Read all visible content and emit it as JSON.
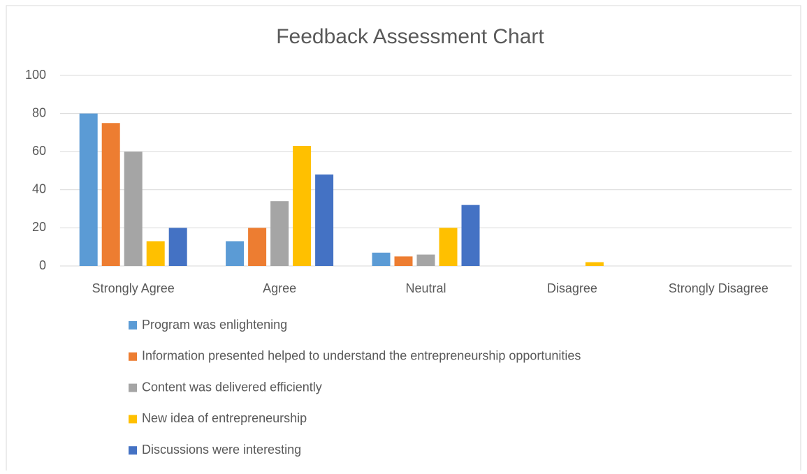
{
  "chart_data": {
    "type": "bar",
    "title": "Feedback Assessment Chart",
    "categories": [
      "Strongly Agree",
      "Agree",
      "Neutral",
      "Disagree",
      "Strongly Disagree"
    ],
    "series": [
      {
        "name": "Program was enlightening",
        "color": "#5b9bd5",
        "values": [
          80,
          13,
          7,
          0,
          0
        ]
      },
      {
        "name": "Information presented helped to understand the entrepreneurship opportunities",
        "color": "#ed7d31",
        "values": [
          75,
          20,
          5,
          0,
          0
        ]
      },
      {
        "name": "Content was delivered efficiently",
        "color": "#a5a5a5",
        "values": [
          60,
          34,
          6,
          0,
          0
        ]
      },
      {
        "name": "New idea of entrepreneurship",
        "color": "#ffc000",
        "values": [
          13,
          63,
          20,
          2,
          0
        ]
      },
      {
        "name": "Discussions were interesting",
        "color": "#4472c4",
        "values": [
          20,
          48,
          32,
          0,
          0
        ]
      }
    ],
    "ylim": [
      0,
      100
    ],
    "yticks": [
      0,
      20,
      40,
      60,
      80,
      100
    ],
    "grid": true,
    "legend": "bottom"
  }
}
